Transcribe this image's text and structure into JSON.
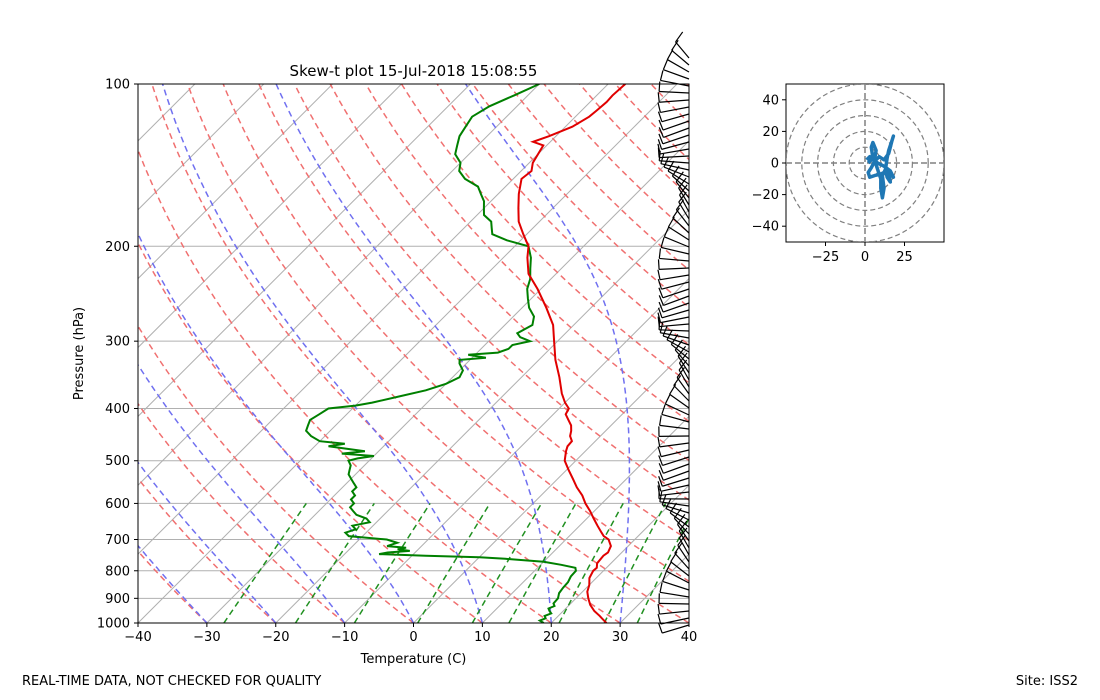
{
  "chart_data": [
    {
      "type": "skew-t",
      "title": "Skew-t plot 15-Jul-2018 15:08:55",
      "xlabel": "Temperature (C)",
      "ylabel": "Pressure (hPa)",
      "xlim": [
        -40,
        40
      ],
      "ylim": [
        1000,
        100
      ],
      "x_ticks": [
        -40,
        -30,
        -20,
        -10,
        0,
        10,
        20,
        30,
        40
      ],
      "y_ticks": [
        1000,
        900,
        800,
        700,
        600,
        500,
        400,
        300,
        200,
        100
      ],
      "grid": true,
      "temperature": {
        "color": "#e00000",
        "points": [
          [
            1000,
            28
          ],
          [
            985,
            27
          ],
          [
            970,
            26
          ],
          [
            950,
            24.5
          ],
          [
            925,
            23
          ],
          [
            900,
            21.8
          ],
          [
            875,
            20.7
          ],
          [
            850,
            20
          ],
          [
            825,
            19
          ],
          [
            800,
            18.5
          ],
          [
            790,
            18.6
          ],
          [
            775,
            18
          ],
          [
            750,
            17.8
          ],
          [
            740,
            18
          ],
          [
            720,
            17.5
          ],
          [
            700,
            16.2
          ],
          [
            690,
            15
          ],
          [
            680,
            14.2
          ],
          [
            660,
            12.6
          ],
          [
            640,
            11
          ],
          [
            620,
            9.4
          ],
          [
            600,
            7.6
          ],
          [
            580,
            6
          ],
          [
            560,
            4
          ],
          [
            540,
            2.2
          ],
          [
            520,
            0.3
          ],
          [
            500,
            -1.6
          ],
          [
            480,
            -2.8
          ],
          [
            470,
            -3.3
          ],
          [
            460,
            -3.4
          ],
          [
            450,
            -4.4
          ],
          [
            440,
            -5
          ],
          [
            430,
            -5.8
          ],
          [
            420,
            -7
          ],
          [
            410,
            -8.2
          ],
          [
            400,
            -8.6
          ],
          [
            390,
            -10
          ],
          [
            375,
            -11.8
          ],
          [
            350,
            -14.5
          ],
          [
            325,
            -17.6
          ],
          [
            300,
            -20.5
          ],
          [
            280,
            -23
          ],
          [
            260,
            -26.5
          ],
          [
            240,
            -30.5
          ],
          [
            225,
            -34
          ],
          [
            210,
            -36.5
          ],
          [
            200,
            -38
          ],
          [
            190,
            -40.5
          ],
          [
            180,
            -43
          ],
          [
            170,
            -45
          ],
          [
            160,
            -47
          ],
          [
            150,
            -48.8
          ],
          [
            145,
            -48.5
          ],
          [
            140,
            -49.5
          ],
          [
            130,
            -50.5
          ],
          [
            128,
            -52.5
          ],
          [
            125,
            -51
          ],
          [
            120,
            -49
          ],
          [
            115,
            -48
          ],
          [
            112,
            -47.8
          ],
          [
            108,
            -47.6
          ],
          [
            105,
            -47.7
          ],
          [
            100,
            -47.5
          ]
        ]
      },
      "dewpoint": {
        "color": "#008000",
        "points": [
          [
            1000,
            18.9
          ],
          [
            990,
            18
          ],
          [
            980,
            18.5
          ],
          [
            970,
            18
          ],
          [
            960,
            18.6
          ],
          [
            950,
            18
          ],
          [
            940,
            17.5
          ],
          [
            930,
            18
          ],
          [
            920,
            17.5
          ],
          [
            900,
            17.4
          ],
          [
            880,
            16.8
          ],
          [
            860,
            16.6
          ],
          [
            840,
            16.5
          ],
          [
            820,
            16.1
          ],
          [
            800,
            16
          ],
          [
            790,
            15.5
          ],
          [
            780,
            13
          ],
          [
            770,
            10
          ],
          [
            760,
            4
          ],
          [
            755,
            0
          ],
          [
            750,
            -8
          ],
          [
            745,
            -15
          ],
          [
            740,
            -14
          ],
          [
            735,
            -11
          ],
          [
            730,
            -13
          ],
          [
            725,
            -12
          ],
          [
            720,
            -15
          ],
          [
            710,
            -14
          ],
          [
            700,
            -16
          ],
          [
            690,
            -22
          ],
          [
            680,
            -23
          ],
          [
            670,
            -22
          ],
          [
            660,
            -23
          ],
          [
            650,
            -21
          ],
          [
            640,
            -22
          ],
          [
            630,
            -24
          ],
          [
            620,
            -25
          ],
          [
            610,
            -26
          ],
          [
            600,
            -26
          ],
          [
            590,
            -27
          ],
          [
            580,
            -27
          ],
          [
            570,
            -28
          ],
          [
            560,
            -28
          ],
          [
            550,
            -29
          ],
          [
            540,
            -30
          ],
          [
            530,
            -31
          ],
          [
            520,
            -31.5
          ],
          [
            510,
            -32
          ],
          [
            500,
            -33
          ],
          [
            495,
            -32
          ],
          [
            490,
            -30
          ],
          [
            485,
            -35
          ],
          [
            480,
            -32
          ],
          [
            475,
            -35
          ],
          [
            470,
            -38
          ],
          [
            465,
            -36
          ],
          [
            460,
            -40
          ],
          [
            450,
            -42
          ],
          [
            440,
            -43.5
          ],
          [
            430,
            -44
          ],
          [
            420,
            -44.5
          ],
          [
            410,
            -44
          ],
          [
            400,
            -43.5
          ],
          [
            395,
            -40
          ],
          [
            390,
            -38
          ],
          [
            380,
            -35
          ],
          [
            370,
            -32
          ],
          [
            360,
            -30
          ],
          [
            350,
            -29
          ],
          [
            340,
            -29.5
          ],
          [
            330,
            -31
          ],
          [
            325,
            -31.5
          ],
          [
            322,
            -28
          ],
          [
            318,
            -31
          ],
          [
            315,
            -27
          ],
          [
            310,
            -26
          ],
          [
            305,
            -26
          ],
          [
            300,
            -24
          ],
          [
            295,
            -26
          ],
          [
            290,
            -27
          ],
          [
            280,
            -26
          ],
          [
            270,
            -27
          ],
          [
            260,
            -29
          ],
          [
            250,
            -30.5
          ],
          [
            240,
            -32
          ],
          [
            230,
            -33
          ],
          [
            220,
            -34.5
          ],
          [
            210,
            -36
          ],
          [
            200,
            -38
          ],
          [
            195,
            -42
          ],
          [
            190,
            -45
          ],
          [
            185,
            -46
          ],
          [
            180,
            -47
          ],
          [
            175,
            -49
          ],
          [
            170,
            -50
          ],
          [
            165,
            -51
          ],
          [
            160,
            -52.5
          ],
          [
            155,
            -54
          ],
          [
            150,
            -57
          ],
          [
            145,
            -59
          ],
          [
            140,
            -60
          ],
          [
            135,
            -62
          ],
          [
            130,
            -63
          ],
          [
            125,
            -64
          ],
          [
            120,
            -64.5
          ],
          [
            115,
            -65
          ],
          [
            110,
            -64
          ],
          [
            105,
            -62
          ],
          [
            100,
            -60
          ]
        ]
      }
    },
    {
      "type": "hodograph",
      "xlim": [
        -50,
        50
      ],
      "ylim": [
        -50,
        50
      ],
      "x_ticks": [
        -25,
        0,
        25
      ],
      "y_ticks": [
        40,
        20,
        0,
        -20,
        -40
      ],
      "ring_radii": [
        10,
        20,
        30,
        40,
        50
      ],
      "color": "#1f77b4",
      "points": [
        [
          2,
          0
        ],
        [
          5,
          3
        ],
        [
          4,
          10
        ],
        [
          5,
          13
        ],
        [
          7,
          8
        ],
        [
          6,
          2
        ],
        [
          8,
          -4
        ],
        [
          10,
          -10
        ],
        [
          10,
          -16
        ],
        [
          11,
          -22
        ],
        [
          12,
          -16
        ],
        [
          11,
          -8
        ],
        [
          13,
          -4
        ],
        [
          15,
          -6
        ],
        [
          16,
          -12
        ],
        [
          14,
          -9
        ],
        [
          13,
          -4
        ],
        [
          14,
          3
        ],
        [
          15,
          8
        ],
        [
          17,
          14
        ],
        [
          18,
          17
        ],
        [
          17,
          14
        ],
        [
          15,
          6
        ],
        [
          12,
          2
        ],
        [
          9,
          4
        ],
        [
          6,
          1
        ],
        [
          4,
          -3
        ],
        [
          2,
          -6
        ],
        [
          3,
          -9
        ],
        [
          6,
          -8
        ],
        [
          10,
          -7
        ],
        [
          14,
          -5
        ],
        [
          17,
          -8
        ],
        [
          18,
          -9
        ],
        [
          16,
          -5
        ],
        [
          12,
          -2
        ],
        [
          8,
          0
        ],
        [
          5,
          2
        ],
        [
          3,
          4
        ],
        [
          1,
          2
        ]
      ]
    }
  ],
  "footer": {
    "left": "REAL-TIME DATA, NOT CHECKED FOR QUALITY",
    "right": "Site: ISS2"
  }
}
